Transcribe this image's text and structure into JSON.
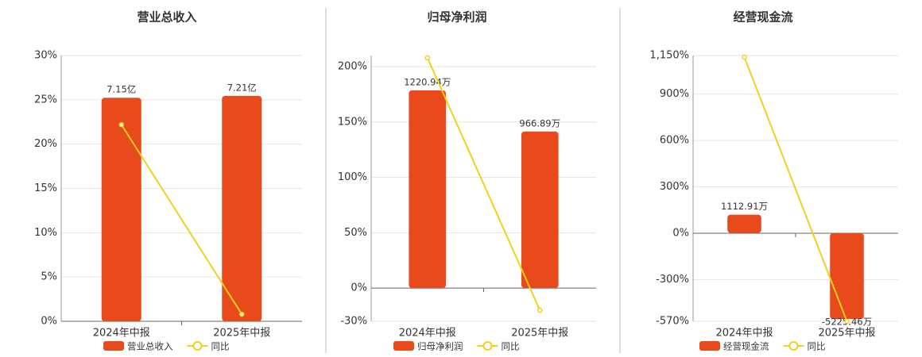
{
  "chart_data": [
    {
      "type": "bar-line",
      "title": "营业总收入",
      "categories": [
        "2024年中报",
        "2025年中报"
      ],
      "series": [
        {
          "name": "营业总收入",
          "type": "bar",
          "axis": "y2",
          "color": "#e84a1b",
          "values": [
            7.15,
            7.21
          ],
          "value_labels": [
            "7.15亿",
            "7.21亿"
          ]
        },
        {
          "name": "同比",
          "type": "line",
          "color": "#f2d01c",
          "values": [
            22.2,
            0.8
          ]
        }
      ],
      "ylim": [
        0,
        30
      ],
      "yticks": [
        {
          "value": 0,
          "label": "0%"
        },
        {
          "value": 5,
          "label": "5%"
        },
        {
          "value": 10,
          "label": "10%"
        },
        {
          "value": 15,
          "label": "15%"
        },
        {
          "value": 20,
          "label": "20%"
        },
        {
          "value": 25,
          "label": "25%"
        },
        {
          "value": 30,
          "label": "30%"
        }
      ],
      "y2lim": [
        0,
        8.5
      ],
      "grid": true
    },
    {
      "type": "bar-line",
      "title": "归母净利润",
      "categories": [
        "2024年中报",
        "2025年中报"
      ],
      "series": [
        {
          "name": "归母净利润",
          "type": "bar",
          "axis": "y2",
          "color": "#e84a1b",
          "values": [
            1220.94,
            966.89
          ],
          "value_labels": [
            "1220.94万",
            "966.89万"
          ]
        },
        {
          "name": "同比",
          "type": "line",
          "color": "#f2d01c",
          "values": [
            207.9,
            -20
          ]
        }
      ],
      "ylim": [
        -30,
        210
      ],
      "yticks": [
        {
          "value": -30,
          "label": "-30%"
        },
        {
          "value": 0,
          "label": "0%"
        },
        {
          "value": 50,
          "label": "50%"
        },
        {
          "value": 100,
          "label": "100%"
        },
        {
          "value": 150,
          "label": "150%"
        },
        {
          "value": 200,
          "label": "200%"
        }
      ],
      "y2lim": [
        -205,
        1436
      ],
      "grid": true
    },
    {
      "type": "bar-line",
      "title": "经营现金流",
      "categories": [
        "2024年中报",
        "2025年中报"
      ],
      "series": [
        {
          "name": "经营现金流",
          "type": "bar",
          "axis": "y2",
          "color": "#e84a1b",
          "values": [
            1112.91,
            -5225.46
          ],
          "value_labels": [
            "1112.91万",
            "-5225.46万"
          ]
        },
        {
          "name": "同比",
          "type": "line",
          "color": "#f2d01c",
          "values": [
            1140,
            -570
          ]
        }
      ],
      "ylim": [
        -570,
        1150
      ],
      "yticks": [
        {
          "value": -570,
          "label": "-570%"
        },
        {
          "value": -300,
          "label": "-300%"
        },
        {
          "value": 0,
          "label": "0%"
        },
        {
          "value": 300,
          "label": "300%"
        },
        {
          "value": 600,
          "label": "600%"
        },
        {
          "value": 900,
          "label": "900%"
        },
        {
          "value": 1150,
          "label": "1,150%"
        }
      ],
      "y2lim": [
        -5370,
        10789
      ],
      "grid": true
    }
  ]
}
